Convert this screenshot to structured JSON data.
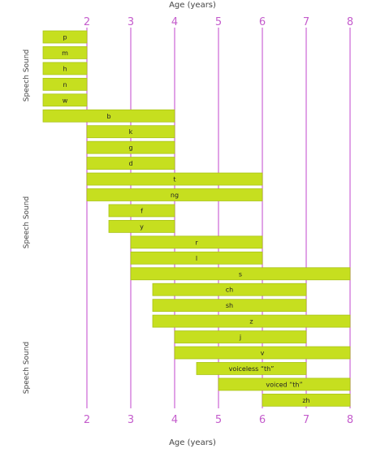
{
  "chart_data": {
    "type": "bar",
    "orientation": "horizontal",
    "xlabel_top": "Age (years)",
    "xlabel_bottom": "Age (years)",
    "ylabel": "Speech Sound",
    "xlim": [
      1,
      8
    ],
    "xticks": [
      2,
      3,
      4,
      5,
      6,
      7,
      8
    ],
    "grid": "vertical lines at ticks",
    "colors": {
      "bar": "#c6df1f",
      "bar_edge": "#a9c419",
      "grid": "#d070d8",
      "tick": "#c45ccc"
    },
    "bars": [
      {
        "label": "p",
        "start": 1,
        "end": 2
      },
      {
        "label": "m",
        "start": 1,
        "end": 2
      },
      {
        "label": "h",
        "start": 1,
        "end": 2
      },
      {
        "label": "n",
        "start": 1,
        "end": 2
      },
      {
        "label": "w",
        "start": 1,
        "end": 2
      },
      {
        "label": "b",
        "start": 1,
        "end": 4
      },
      {
        "label": "k",
        "start": 2,
        "end": 4
      },
      {
        "label": "g",
        "start": 2,
        "end": 4
      },
      {
        "label": "d",
        "start": 2,
        "end": 4
      },
      {
        "label": "t",
        "start": 2,
        "end": 6
      },
      {
        "label": "ng",
        "start": 2,
        "end": 6
      },
      {
        "label": "f",
        "start": 2.5,
        "end": 4
      },
      {
        "label": "y",
        "start": 2.5,
        "end": 4
      },
      {
        "label": "r",
        "start": 3,
        "end": 6
      },
      {
        "label": "l",
        "start": 3,
        "end": 6
      },
      {
        "label": "s",
        "start": 3,
        "end": 8
      },
      {
        "label": "ch",
        "start": 3.5,
        "end": 7
      },
      {
        "label": "sh",
        "start": 3.5,
        "end": 7
      },
      {
        "label": "z",
        "start": 3.5,
        "end": 8
      },
      {
        "label": "j",
        "start": 4,
        "end": 7
      },
      {
        "label": "v",
        "start": 4,
        "end": 8
      },
      {
        "label": "voiceless “th”",
        "start": 4.5,
        "end": 7
      },
      {
        "label": "voiced “th”",
        "start": 5,
        "end": 8
      },
      {
        "label": "zh",
        "start": 6,
        "end": 8
      }
    ]
  }
}
